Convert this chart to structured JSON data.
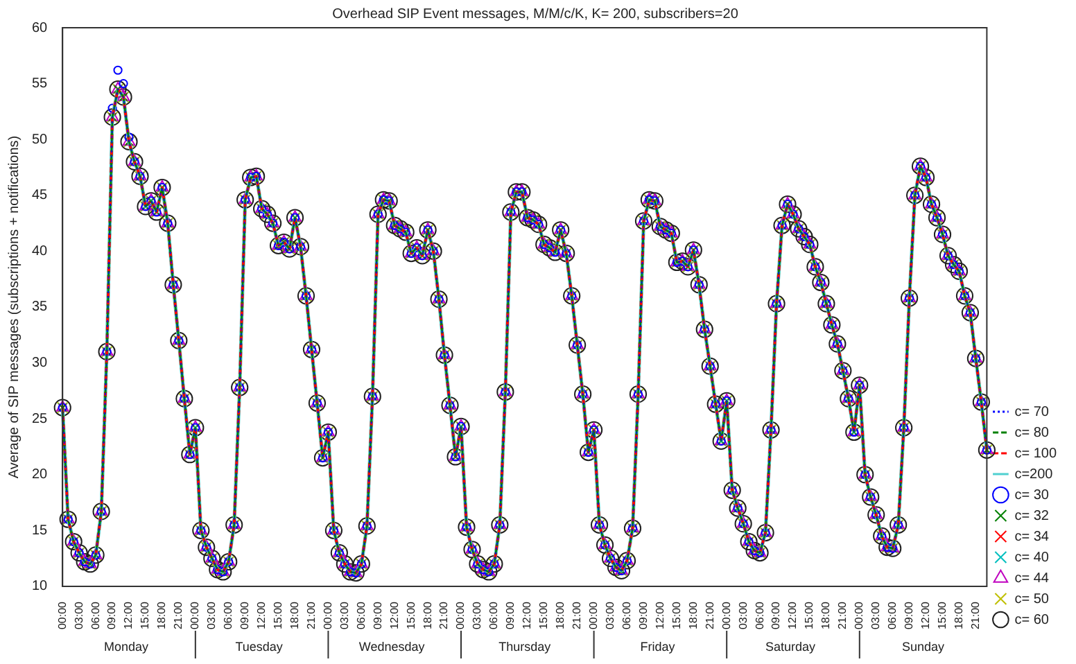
{
  "chart_data": {
    "type": "scatter",
    "title": "Overhead SIP Event messages, M/M/c/K, K= 200, subscribers=20",
    "ylabel": "Average of SIP messages (subscriptions + notifications)",
    "annotations": [
      "Monday",
      "Tuesday",
      "Wednesday",
      "Thursday",
      "Friday",
      "Saturday",
      "Sunday"
    ],
    "categories": [
      "00:00",
      null,
      null,
      "03:00",
      null,
      null,
      "06:00",
      null,
      null,
      "09:00",
      null,
      null,
      "12:00",
      null,
      null,
      "15:00",
      null,
      null,
      "18:00",
      null,
      null,
      "21:00",
      null,
      null,
      "00:00",
      null,
      null,
      "03:00",
      null,
      null,
      "06:00",
      null,
      null,
      "09:00",
      null,
      null,
      "12:00",
      null,
      null,
      "15:00",
      null,
      null,
      "18:00",
      null,
      null,
      "21:00",
      null,
      null,
      "00:00",
      null,
      null,
      "03:00",
      null,
      null,
      "06:00",
      null,
      null,
      "09:00",
      null,
      null,
      "12:00",
      null,
      null,
      "15:00",
      null,
      null,
      "18:00",
      null,
      null,
      "21:00",
      null,
      null,
      "00:00",
      null,
      null,
      "03:00",
      null,
      null,
      "06:00",
      null,
      null,
      "09:00",
      null,
      null,
      "12:00",
      null,
      null,
      "15:00",
      null,
      null,
      "18:00",
      null,
      null,
      "21:00",
      null,
      null,
      "00:00",
      null,
      null,
      "03:00",
      null,
      null,
      "06:00",
      null,
      null,
      "09:00",
      null,
      null,
      "12:00",
      null,
      null,
      "15:00",
      null,
      null,
      "18:00",
      null,
      null,
      "21:00",
      null,
      null,
      "00:00",
      null,
      null,
      "03:00",
      null,
      null,
      "06:00",
      null,
      null,
      "09:00",
      null,
      null,
      "12:00",
      null,
      null,
      "15:00",
      null,
      null,
      "18:00",
      null,
      null,
      "21:00",
      null,
      null,
      "00:00",
      null,
      null,
      "03:00",
      null,
      null,
      "06:00",
      null,
      null,
      "09:00",
      null,
      null,
      "12:00",
      null,
      null,
      "15:00",
      null,
      null,
      "18:00",
      null,
      null,
      "21:00",
      null,
      null
    ],
    "ylim": [
      10,
      60
    ],
    "yticks": [
      10,
      15,
      20,
      25,
      30,
      35,
      40,
      45,
      50,
      55,
      60
    ],
    "legend": "bottom right",
    "series": [
      {
        "name": "c= 30",
        "color": "#0000ff",
        "marker": "circle",
        "values": [
          26,
          16,
          14,
          13,
          12.2,
          12,
          12.8,
          16.7,
          31,
          52.8,
          56.2,
          55,
          50.2,
          48,
          46.7,
          44,
          44.5,
          43.5,
          45.7,
          42.5,
          37,
          32,
          26.8,
          21.8,
          24.2,
          15,
          13.5,
          12.5,
          11.5,
          11.3,
          12.2,
          15.5,
          27.8,
          44.6,
          46.6,
          46.7,
          43.8,
          43.3,
          42.5,
          40.5,
          40.8,
          40.2,
          43,
          40.4,
          36,
          31.2,
          26.4,
          21.5,
          23.8,
          15,
          13,
          12,
          11.3,
          11.2,
          12,
          15.4,
          27,
          43.3,
          44.6,
          44.5,
          42.3,
          42,
          41.7,
          39.8,
          40.3,
          39.6,
          41.9,
          40,
          35.7,
          30.7,
          26.2,
          21.6,
          24.3,
          15.3,
          13.3,
          12,
          11.5,
          11.3,
          12,
          15.5,
          27.4,
          43.5,
          45.3,
          45.3,
          43,
          42.8,
          42.4,
          40.6,
          40.3,
          39.9,
          41.9,
          39.8,
          36,
          31.6,
          27.2,
          22,
          24,
          15.5,
          13.7,
          12.5,
          11.7,
          11.4,
          12.3,
          15.2,
          27.2,
          42.7,
          44.6,
          44.5,
          42.2,
          41.9,
          41.6,
          39,
          39.1,
          38.6,
          40.1,
          37,
          33,
          29.7,
          26.3,
          23,
          26.6,
          18.6,
          17,
          15.6,
          14,
          13.2,
          13,
          14.8,
          24,
          35.3,
          42.3,
          44.2,
          43.3,
          42,
          41.3,
          40.6,
          38.6,
          37.2,
          35.3,
          33.4,
          31.7,
          29.3,
          26.8,
          23.8,
          28,
          20,
          18,
          16.4,
          14.5,
          13.5,
          13.4,
          15.5,
          24.2,
          35.8,
          45,
          47.6,
          46.6,
          44.2,
          43,
          41.5,
          39.6,
          38.8,
          38.2,
          36,
          34.5,
          30.4,
          26.5,
          22.2
        ]
      },
      {
        "name": "c= 32",
        "color": "#008000",
        "marker": "cross",
        "values": [
          26,
          16,
          14,
          13,
          12.2,
          12,
          12.8,
          16.7,
          31,
          52,
          54.5,
          53.8,
          49.8,
          48,
          46.7,
          44,
          44.5,
          43.5,
          45.7,
          42.5,
          37,
          32,
          26.8,
          21.8,
          24.2,
          15,
          13.5,
          12.5,
          11.5,
          11.3,
          12.2,
          15.5,
          27.8,
          44.6,
          46.6,
          46.7,
          43.8,
          43.3,
          42.5,
          40.5,
          40.8,
          40.2,
          43,
          40.4,
          36,
          31.2,
          26.4,
          21.5,
          23.8,
          15,
          13,
          12,
          11.3,
          11.2,
          12,
          15.4,
          27,
          43.3,
          44.6,
          44.5,
          42.3,
          42,
          41.7,
          39.8,
          40.3,
          39.6,
          41.9,
          40,
          35.7,
          30.7,
          26.2,
          21.6,
          24.3,
          15.3,
          13.3,
          12,
          11.5,
          11.3,
          12,
          15.5,
          27.4,
          43.5,
          45.3,
          45.3,
          43,
          42.8,
          42.4,
          40.6,
          40.3,
          39.9,
          41.9,
          39.8,
          36,
          31.6,
          27.2,
          22,
          24,
          15.5,
          13.7,
          12.5,
          11.7,
          11.4,
          12.3,
          15.2,
          27.2,
          42.7,
          44.6,
          44.5,
          42.2,
          41.9,
          41.6,
          39,
          39.1,
          38.6,
          40.1,
          37,
          33,
          29.7,
          26.3,
          23,
          26.6,
          18.6,
          17,
          15.6,
          14,
          13.2,
          13,
          14.8,
          24,
          35.3,
          42.3,
          44.2,
          43.3,
          42,
          41.3,
          40.6,
          38.6,
          37.2,
          35.3,
          33.4,
          31.7,
          29.3,
          26.8,
          23.8,
          28,
          20,
          18,
          16.4,
          14.5,
          13.5,
          13.4,
          15.5,
          24.2,
          35.8,
          45,
          47.6,
          46.6,
          44.2,
          43,
          41.5,
          39.6,
          38.8,
          38.2,
          36,
          34.5,
          30.4,
          26.5,
          22.2
        ]
      },
      {
        "name": "c= 34",
        "color": "#ff0000",
        "marker": "cross",
        "values": [
          26,
          16,
          14,
          13,
          12.2,
          12,
          12.8,
          16.7,
          31,
          52,
          54.5,
          53.8,
          49.8,
          48,
          46.7,
          44,
          44.5,
          43.5,
          45.7,
          42.5,
          37,
          32,
          26.8,
          21.8,
          24.2,
          15,
          13.5,
          12.5,
          11.5,
          11.3,
          12.2,
          15.5,
          27.8,
          44.6,
          46.6,
          46.7,
          43.8,
          43.3,
          42.5,
          40.5,
          40.8,
          40.2,
          43,
          40.4,
          36,
          31.2,
          26.4,
          21.5,
          23.8,
          15,
          13,
          12,
          11.3,
          11.2,
          12,
          15.4,
          27,
          43.3,
          44.6,
          44.5,
          42.3,
          42,
          41.7,
          39.8,
          40.3,
          39.6,
          41.9,
          40,
          35.7,
          30.7,
          26.2,
          21.6,
          24.3,
          15.3,
          13.3,
          12,
          11.5,
          11.3,
          12,
          15.5,
          27.4,
          43.5,
          45.3,
          45.3,
          43,
          42.8,
          42.4,
          40.6,
          40.3,
          39.9,
          41.9,
          39.8,
          36,
          31.6,
          27.2,
          22,
          24,
          15.5,
          13.7,
          12.5,
          11.7,
          11.4,
          12.3,
          15.2,
          27.2,
          42.7,
          44.6,
          44.5,
          42.2,
          41.9,
          41.6,
          39,
          39.1,
          38.6,
          40.1,
          37,
          33,
          29.7,
          26.3,
          23,
          26.6,
          18.6,
          17,
          15.6,
          14,
          13.2,
          13,
          14.8,
          24,
          35.3,
          42.3,
          44.2,
          43.3,
          42,
          41.3,
          40.6,
          38.6,
          37.2,
          35.3,
          33.4,
          31.7,
          29.3,
          26.8,
          23.8,
          28,
          20,
          18,
          16.4,
          14.5,
          13.5,
          13.4,
          15.5,
          24.2,
          35.8,
          45,
          47.6,
          46.6,
          44.2,
          43,
          41.5,
          39.6,
          38.8,
          38.2,
          36,
          34.5,
          30.4,
          26.5,
          22.2
        ]
      },
      {
        "name": "c= 40",
        "color": "#00bfbf",
        "marker": "cross",
        "values": [
          26,
          16,
          14,
          13,
          12.2,
          12,
          12.8,
          16.7,
          31,
          52,
          54.5,
          53.8,
          49.8,
          48,
          46.7,
          44,
          44.5,
          43.5,
          45.7,
          42.5,
          37,
          32,
          26.8,
          21.8,
          24.2,
          15,
          13.5,
          12.5,
          11.5,
          11.3,
          12.2,
          15.5,
          27.8,
          44.6,
          46.6,
          46.7,
          43.8,
          43.3,
          42.5,
          40.5,
          40.8,
          40.2,
          43,
          40.4,
          36,
          31.2,
          26.4,
          21.5,
          23.8,
          15,
          13,
          12,
          11.3,
          11.2,
          12,
          15.4,
          27,
          43.3,
          44.6,
          44.5,
          42.3,
          42,
          41.7,
          39.8,
          40.3,
          39.6,
          41.9,
          40,
          35.7,
          30.7,
          26.2,
          21.6,
          24.3,
          15.3,
          13.3,
          12,
          11.5,
          11.3,
          12,
          15.5,
          27.4,
          43.5,
          45.3,
          45.3,
          43,
          42.8,
          42.4,
          40.6,
          40.3,
          39.9,
          41.9,
          39.8,
          36,
          31.6,
          27.2,
          22,
          24,
          15.5,
          13.7,
          12.5,
          11.7,
          11.4,
          12.3,
          15.2,
          27.2,
          42.7,
          44.6,
          44.5,
          42.2,
          41.9,
          41.6,
          39,
          39.1,
          38.6,
          40.1,
          37,
          33,
          29.7,
          26.3,
          23,
          26.6,
          18.6,
          17,
          15.6,
          14,
          13.2,
          13,
          14.8,
          24,
          35.3,
          42.3,
          44.2,
          43.3,
          42,
          41.3,
          40.6,
          38.6,
          37.2,
          35.3,
          33.4,
          31.7,
          29.3,
          26.8,
          23.8,
          28,
          20,
          18,
          16.4,
          14.5,
          13.5,
          13.4,
          15.5,
          24.2,
          35.8,
          45,
          47.6,
          46.6,
          44.2,
          43,
          41.5,
          39.6,
          38.8,
          38.2,
          36,
          34.5,
          30.4,
          26.5,
          22.2
        ]
      },
      {
        "name": "c= 44",
        "color": "#bf00bf",
        "marker": "triangle",
        "values": [
          26,
          16,
          14,
          13,
          12.2,
          12,
          12.8,
          16.7,
          31,
          52,
          54.5,
          53.8,
          49.8,
          48,
          46.7,
          44,
          44.5,
          43.5,
          45.7,
          42.5,
          37,
          32,
          26.8,
          21.8,
          24.2,
          15,
          13.5,
          12.5,
          11.5,
          11.3,
          12.2,
          15.5,
          27.8,
          44.6,
          46.6,
          46.7,
          43.8,
          43.3,
          42.5,
          40.5,
          40.8,
          40.2,
          43,
          40.4,
          36,
          31.2,
          26.4,
          21.5,
          23.8,
          15,
          13,
          12,
          11.3,
          11.2,
          12,
          15.4,
          27,
          43.3,
          44.6,
          44.5,
          42.3,
          42,
          41.7,
          39.8,
          40.3,
          39.6,
          41.9,
          40,
          35.7,
          30.7,
          26.2,
          21.6,
          24.3,
          15.3,
          13.3,
          12,
          11.5,
          11.3,
          12,
          15.5,
          27.4,
          43.5,
          45.3,
          45.3,
          43,
          42.8,
          42.4,
          40.6,
          40.3,
          39.9,
          41.9,
          39.8,
          36,
          31.6,
          27.2,
          22,
          24,
          15.5,
          13.7,
          12.5,
          11.7,
          11.4,
          12.3,
          15.2,
          27.2,
          42.7,
          44.6,
          44.5,
          42.2,
          41.9,
          41.6,
          39,
          39.1,
          38.6,
          40.1,
          37,
          33,
          29.7,
          26.3,
          23,
          26.6,
          18.6,
          17,
          15.6,
          14,
          13.2,
          13,
          14.8,
          24,
          35.3,
          42.3,
          44.2,
          43.3,
          42,
          41.3,
          40.6,
          38.6,
          37.2,
          35.3,
          33.4,
          31.7,
          29.3,
          26.8,
          23.8,
          28,
          20,
          18,
          16.4,
          14.5,
          13.5,
          13.4,
          15.5,
          24.2,
          35.8,
          45,
          47.6,
          46.6,
          44.2,
          43,
          41.5,
          39.6,
          38.8,
          38.2,
          36,
          34.5,
          30.4,
          26.5,
          22.2
        ]
      },
      {
        "name": "c= 50",
        "color": "#bfbf00",
        "marker": "cross",
        "values": [
          26,
          16,
          14,
          13,
          12.2,
          12,
          12.8,
          16.7,
          31,
          52,
          54.5,
          53.8,
          49.8,
          48,
          46.7,
          44,
          44.5,
          43.5,
          45.7,
          42.5,
          37,
          32,
          26.8,
          21.8,
          24.2,
          15,
          13.5,
          12.5,
          11.5,
          11.3,
          12.2,
          15.5,
          27.8,
          44.6,
          46.6,
          46.7,
          43.8,
          43.3,
          42.5,
          40.5,
          40.8,
          40.2,
          43,
          40.4,
          36,
          31.2,
          26.4,
          21.5,
          23.8,
          15,
          13,
          12,
          11.3,
          11.2,
          12,
          15.4,
          27,
          43.3,
          44.6,
          44.5,
          42.3,
          42,
          41.7,
          39.8,
          40.3,
          39.6,
          41.9,
          40,
          35.7,
          30.7,
          26.2,
          21.6,
          24.3,
          15.3,
          13.3,
          12,
          11.5,
          11.3,
          12,
          15.5,
          27.4,
          43.5,
          45.3,
          45.3,
          43,
          42.8,
          42.4,
          40.6,
          40.3,
          39.9,
          41.9,
          39.8,
          36,
          31.6,
          27.2,
          22,
          24,
          15.5,
          13.7,
          12.5,
          11.7,
          11.4,
          12.3,
          15.2,
          27.2,
          42.7,
          44.6,
          44.5,
          42.2,
          41.9,
          41.6,
          39,
          39.1,
          38.6,
          40.1,
          37,
          33,
          29.7,
          26.3,
          23,
          26.6,
          18.6,
          17,
          15.6,
          14,
          13.2,
          13,
          14.8,
          24,
          35.3,
          42.3,
          44.2,
          43.3,
          42,
          41.3,
          40.6,
          38.6,
          37.2,
          35.3,
          33.4,
          31.7,
          29.3,
          26.8,
          23.8,
          28,
          20,
          18,
          16.4,
          14.5,
          13.5,
          13.4,
          15.5,
          24.2,
          35.8,
          45,
          47.6,
          46.6,
          44.2,
          43,
          41.5,
          39.6,
          38.8,
          38.2,
          36,
          34.5,
          30.4,
          26.5,
          22.2
        ]
      },
      {
        "name": "c= 60",
        "color": "#202020",
        "marker": "circle",
        "values": [
          26,
          16,
          14,
          13,
          12.2,
          12,
          12.8,
          16.7,
          31,
          52,
          54.5,
          53.8,
          49.8,
          48,
          46.7,
          44,
          44.5,
          43.5,
          45.7,
          42.5,
          37,
          32,
          26.8,
          21.8,
          24.2,
          15,
          13.5,
          12.5,
          11.5,
          11.3,
          12.2,
          15.5,
          27.8,
          44.6,
          46.6,
          46.7,
          43.8,
          43.3,
          42.5,
          40.5,
          40.8,
          40.2,
          43,
          40.4,
          36,
          31.2,
          26.4,
          21.5,
          23.8,
          15,
          13,
          12,
          11.3,
          11.2,
          12,
          15.4,
          27,
          43.3,
          44.6,
          44.5,
          42.3,
          42,
          41.7,
          39.8,
          40.3,
          39.6,
          41.9,
          40,
          35.7,
          30.7,
          26.2,
          21.6,
          24.3,
          15.3,
          13.3,
          12,
          11.5,
          11.3,
          12,
          15.5,
          27.4,
          43.5,
          45.3,
          45.3,
          43,
          42.8,
          42.4,
          40.6,
          40.3,
          39.9,
          41.9,
          39.8,
          36,
          31.6,
          27.2,
          22,
          24,
          15.5,
          13.7,
          12.5,
          11.7,
          11.4,
          12.3,
          15.2,
          27.2,
          42.7,
          44.6,
          44.5,
          42.2,
          41.9,
          41.6,
          39,
          39.1,
          38.6,
          40.1,
          37,
          33,
          29.7,
          26.3,
          23,
          26.6,
          18.6,
          17,
          15.6,
          14,
          13.2,
          13,
          14.8,
          24,
          35.3,
          42.3,
          44.2,
          43.3,
          42,
          41.3,
          40.6,
          38.6,
          37.2,
          35.3,
          33.4,
          31.7,
          29.3,
          26.8,
          23.8,
          28,
          20,
          18,
          16.4,
          14.5,
          13.5,
          13.4,
          15.5,
          24.2,
          35.8,
          45,
          47.6,
          46.6,
          44.2,
          43,
          41.5,
          39.6,
          38.8,
          38.2,
          36,
          34.5,
          30.4,
          26.5,
          22.2
        ]
      },
      {
        "name": "c= 70",
        "color": "#0000ff",
        "type": "line",
        "marker": "none",
        "line_style": "dotted",
        "values": [
          26,
          16,
          14,
          13,
          12.2,
          12,
          12.8,
          16.7,
          31,
          52,
          54.5,
          53.8,
          49.8,
          48,
          46.7,
          44,
          44.5,
          43.5,
          45.7,
          42.5,
          37,
          32,
          26.8,
          21.8,
          24.2,
          15,
          13.5,
          12.5,
          11.5,
          11.3,
          12.2,
          15.5,
          27.8,
          44.6,
          46.6,
          46.7,
          43.8,
          43.3,
          42.5,
          40.5,
          40.8,
          40.2,
          43,
          40.4,
          36,
          31.2,
          26.4,
          21.5,
          23.8,
          15,
          13,
          12,
          11.3,
          11.2,
          12,
          15.4,
          27,
          43.3,
          44.6,
          44.5,
          42.3,
          42,
          41.7,
          39.8,
          40.3,
          39.6,
          41.9,
          40,
          35.7,
          30.7,
          26.2,
          21.6,
          24.3,
          15.3,
          13.3,
          12,
          11.5,
          11.3,
          12,
          15.5,
          27.4,
          43.5,
          45.3,
          45.3,
          43,
          42.8,
          42.4,
          40.6,
          40.3,
          39.9,
          41.9,
          39.8,
          36,
          31.6,
          27.2,
          22,
          24,
          15.5,
          13.7,
          12.5,
          11.7,
          11.4,
          12.3,
          15.2,
          27.2,
          42.7,
          44.6,
          44.5,
          42.2,
          41.9,
          41.6,
          39,
          39.1,
          38.6,
          40.1,
          37,
          33,
          29.7,
          26.3,
          23,
          26.6,
          18.6,
          17,
          15.6,
          14,
          13.2,
          13,
          14.8,
          24,
          35.3,
          42.3,
          44.2,
          43.3,
          42,
          41.3,
          40.6,
          38.6,
          37.2,
          35.3,
          33.4,
          31.7,
          29.3,
          26.8,
          23.8,
          28,
          20,
          18,
          16.4,
          14.5,
          13.5,
          13.4,
          15.5,
          24.2,
          35.8,
          45,
          47.6,
          46.6,
          44.2,
          43,
          41.5,
          39.6,
          38.8,
          38.2,
          36,
          34.5,
          30.4,
          26.5,
          22.2
        ]
      },
      {
        "name": "c= 80",
        "color": "#008000",
        "type": "line",
        "marker": "none",
        "line_style": "dashed",
        "values": [
          26,
          16,
          14,
          13,
          12.2,
          12,
          12.8,
          16.7,
          31,
          52,
          54.5,
          53.8,
          49.8,
          48,
          46.7,
          44,
          44.5,
          43.5,
          45.7,
          42.5,
          37,
          32,
          26.8,
          21.8,
          24.2,
          15,
          13.5,
          12.5,
          11.5,
          11.3,
          12.2,
          15.5,
          27.8,
          44.6,
          46.6,
          46.7,
          43.8,
          43.3,
          42.5,
          40.5,
          40.8,
          40.2,
          43,
          40.4,
          36,
          31.2,
          26.4,
          21.5,
          23.8,
          15,
          13,
          12,
          11.3,
          11.2,
          12,
          15.4,
          27,
          43.3,
          44.6,
          44.5,
          42.3,
          42,
          41.7,
          39.8,
          40.3,
          39.6,
          41.9,
          40,
          35.7,
          30.7,
          26.2,
          21.6,
          24.3,
          15.3,
          13.3,
          12,
          11.5,
          11.3,
          12,
          15.5,
          27.4,
          43.5,
          45.3,
          45.3,
          43,
          42.8,
          42.4,
          40.6,
          40.3,
          39.9,
          41.9,
          39.8,
          36,
          31.6,
          27.2,
          22,
          24,
          15.5,
          13.7,
          12.5,
          11.7,
          11.4,
          12.3,
          15.2,
          27.2,
          42.7,
          44.6,
          44.5,
          42.2,
          41.9,
          41.6,
          39,
          39.1,
          38.6,
          40.1,
          37,
          33,
          29.7,
          26.3,
          23,
          26.6,
          18.6,
          17,
          15.6,
          14,
          13.2,
          13,
          14.8,
          24,
          35.3,
          42.3,
          44.2,
          43.3,
          42,
          41.3,
          40.6,
          38.6,
          37.2,
          35.3,
          33.4,
          31.7,
          29.3,
          26.8,
          23.8,
          28,
          20,
          18,
          16.4,
          14.5,
          13.5,
          13.4,
          15.5,
          24.2,
          35.8,
          45,
          47.6,
          46.6,
          44.2,
          43,
          41.5,
          39.6,
          38.8,
          38.2,
          36,
          34.5,
          30.4,
          26.5,
          22.2
        ]
      },
      {
        "name": "c= 100",
        "color": "#ff0000",
        "type": "line",
        "marker": "none",
        "line_style": "dashed",
        "values": [
          26,
          16,
          14,
          13,
          12.2,
          12,
          12.8,
          16.7,
          31,
          52,
          54.5,
          53.8,
          49.8,
          48,
          46.7,
          44,
          44.5,
          43.5,
          45.7,
          42.5,
          37,
          32,
          26.8,
          21.8,
          24.2,
          15,
          13.5,
          12.5,
          11.5,
          11.3,
          12.2,
          15.5,
          27.8,
          44.6,
          46.6,
          46.7,
          43.8,
          43.3,
          42.5,
          40.5,
          40.8,
          40.2,
          43,
          40.4,
          36,
          31.2,
          26.4,
          21.5,
          23.8,
          15,
          13,
          12,
          11.3,
          11.2,
          12,
          15.4,
          27,
          43.3,
          44.6,
          44.5,
          42.3,
          42,
          41.7,
          39.8,
          40.3,
          39.6,
          41.9,
          40,
          35.7,
          30.7,
          26.2,
          21.6,
          24.3,
          15.3,
          13.3,
          12,
          11.5,
          11.3,
          12,
          15.5,
          27.4,
          43.5,
          45.3,
          45.3,
          43,
          42.8,
          42.4,
          40.6,
          40.3,
          39.9,
          41.9,
          39.8,
          36,
          31.6,
          27.2,
          22,
          24,
          15.5,
          13.7,
          12.5,
          11.7,
          11.4,
          12.3,
          15.2,
          27.2,
          42.7,
          44.6,
          44.5,
          42.2,
          41.9,
          41.6,
          39,
          39.1,
          38.6,
          40.1,
          37,
          33,
          29.7,
          26.3,
          23,
          26.6,
          18.6,
          17,
          15.6,
          14,
          13.2,
          13,
          14.8,
          24,
          35.3,
          42.3,
          44.2,
          43.3,
          42,
          41.3,
          40.6,
          38.6,
          37.2,
          35.3,
          33.4,
          31.7,
          29.3,
          26.8,
          23.8,
          28,
          20,
          18,
          16.4,
          14.5,
          13.5,
          13.4,
          15.5,
          24.2,
          35.8,
          45,
          47.6,
          46.6,
          44.2,
          43,
          41.5,
          39.6,
          38.8,
          38.2,
          36,
          34.5,
          30.4,
          26.5,
          22.2
        ]
      },
      {
        "name": "c=200",
        "color": "#4fd0d0",
        "type": "line",
        "marker": "none",
        "line_style": "solid",
        "values": [
          26,
          16,
          14,
          13,
          12.2,
          12,
          12.8,
          16.7,
          31,
          52,
          54.5,
          53.8,
          49.8,
          48,
          46.7,
          44,
          44.5,
          43.5,
          45.7,
          42.5,
          37,
          32,
          26.8,
          21.8,
          24.2,
          15,
          13.5,
          12.5,
          11.5,
          11.3,
          12.2,
          15.5,
          27.8,
          44.6,
          46.6,
          46.7,
          43.8,
          43.3,
          42.5,
          40.5,
          40.8,
          40.2,
          43,
          40.4,
          36,
          31.2,
          26.4,
          21.5,
          23.8,
          15,
          13,
          12,
          11.3,
          11.2,
          12,
          15.4,
          27,
          43.3,
          44.6,
          44.5,
          42.3,
          42,
          41.7,
          39.8,
          40.3,
          39.6,
          41.9,
          40,
          35.7,
          30.7,
          26.2,
          21.6,
          24.3,
          15.3,
          13.3,
          12,
          11.5,
          11.3,
          12,
          15.5,
          27.4,
          43.5,
          45.3,
          45.3,
          43,
          42.8,
          42.4,
          40.6,
          40.3,
          39.9,
          41.9,
          39.8,
          36,
          31.6,
          27.2,
          22,
          24,
          15.5,
          13.7,
          12.5,
          11.7,
          11.4,
          12.3,
          15.2,
          27.2,
          42.7,
          44.6,
          44.5,
          42.2,
          41.9,
          41.6,
          39,
          39.1,
          38.6,
          40.1,
          37,
          33,
          29.7,
          26.3,
          23,
          26.6,
          18.6,
          17,
          15.6,
          14,
          13.2,
          13,
          14.8,
          24,
          35.3,
          42.3,
          44.2,
          43.3,
          42,
          41.3,
          40.6,
          38.6,
          37.2,
          35.3,
          33.4,
          31.7,
          29.3,
          26.8,
          23.8,
          28,
          20,
          18,
          16.4,
          14.5,
          13.5,
          13.4,
          15.5,
          24.2,
          35.8,
          45,
          47.6,
          46.6,
          44.2,
          43,
          41.5,
          39.6,
          38.8,
          38.2,
          36,
          34.5,
          30.4,
          26.5,
          22.2
        ]
      }
    ]
  }
}
